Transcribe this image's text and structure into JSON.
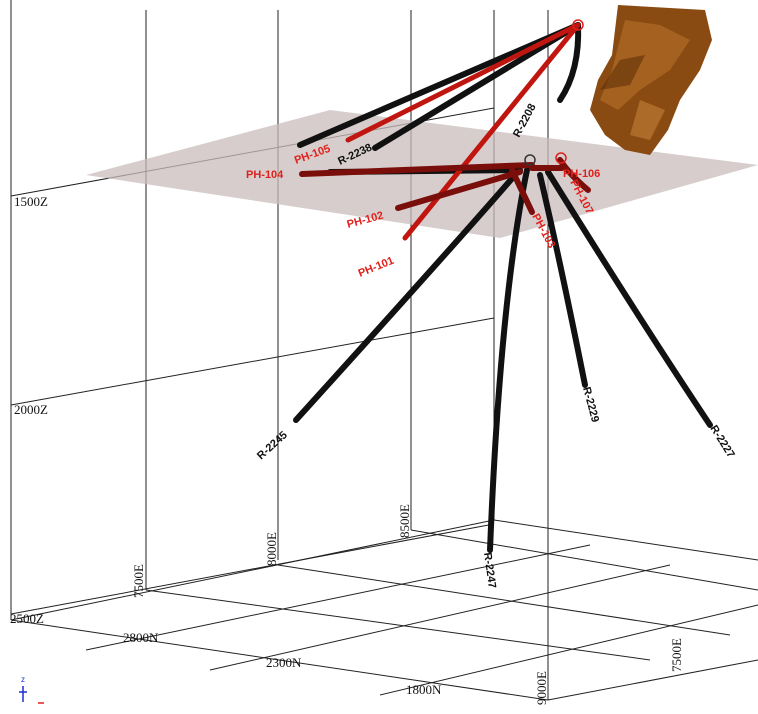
{
  "elevation_labels": [
    "1500Z",
    "2000Z",
    "2500Z"
  ],
  "easting_labels": [
    "7500E",
    "8000E",
    "8500E",
    "9000E",
    "7500E"
  ],
  "northing_labels": [
    "2800N",
    "2300N",
    "1800N"
  ],
  "black_holes": [
    "R-2238",
    "R-2208",
    "R-2245",
    "R-2247",
    "R-2229",
    "R-2227"
  ],
  "red_holes": [
    "PH-105",
    "PH-104",
    "PH-102",
    "PH-101",
    "PH-106",
    "PH-107",
    "PH-103"
  ],
  "orientation": {
    "z_label": "z"
  },
  "colors": {
    "red_hole": "#c0160f",
    "black_hole": "#111111",
    "plane": "#c9bcbc",
    "orebody": "#8a4b12"
  }
}
